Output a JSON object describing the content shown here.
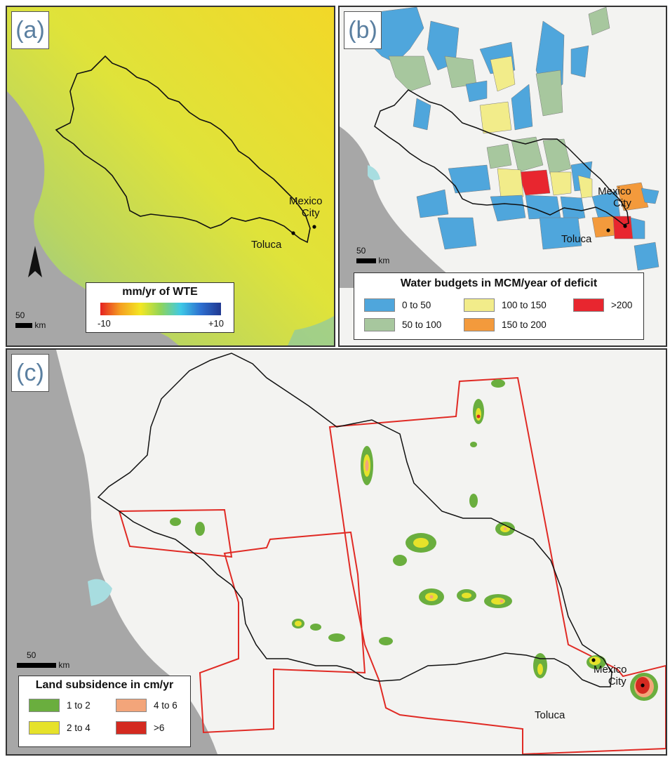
{
  "panels": {
    "a": {
      "tag": "(a)",
      "cities": {
        "mexico": "Mexico\nCity",
        "mexico_l1": "Mexico",
        "mexico_l2": "City",
        "toluca": "Toluca"
      },
      "scale": {
        "value": "50",
        "unit": "km"
      },
      "legend": {
        "title": "mm/yr of WTE",
        "min": "-10",
        "max": "+10"
      },
      "colors": {
        "north": "#f0d92a",
        "mid": "#d8e23a",
        "south": "#9fc48a",
        "ocean": "#a8a8a8",
        "gradient": [
          "#e52222",
          "#f5a021",
          "#f3e723",
          "#8fd45a",
          "#3ec9e6",
          "#2e6fd0",
          "#203890"
        ]
      }
    },
    "b": {
      "tag": "(b)",
      "cities": {
        "mexico_l1": "Mexico",
        "mexico_l2": "City",
        "toluca": "Toluca"
      },
      "scale": {
        "value": "50",
        "unit": "km"
      },
      "legend": {
        "title": "Water budgets in MCM/year of deficit",
        "items": [
          {
            "label": "0 to 50",
            "color": "#4fa6dc"
          },
          {
            "label": "50 to 100",
            "color": "#a7c79e"
          },
          {
            "label": "100 to 150",
            "color": "#f2ec8a"
          },
          {
            "label": "150 to 200",
            "color": "#f39a3c"
          },
          {
            "label": ">200",
            "color": "#e8262f"
          }
        ]
      }
    },
    "c": {
      "tag": "(c)",
      "cities": {
        "mexico_l1": "Mexico",
        "mexico_l2": "City",
        "toluca": "Toluca"
      },
      "scale": {
        "value": "50",
        "unit": "km"
      },
      "legend": {
        "title": "Land subsidence in cm/yr",
        "items": [
          {
            "label": "1 to 2",
            "color": "#6aae3e"
          },
          {
            "label": "2 to 4",
            "color": "#e6e22a"
          },
          {
            "label": "4 to 6",
            "color": "#f3a57a"
          },
          {
            "label": ">6",
            "color": "#d42a20"
          }
        ]
      },
      "frame_color": "#e02a24"
    }
  }
}
